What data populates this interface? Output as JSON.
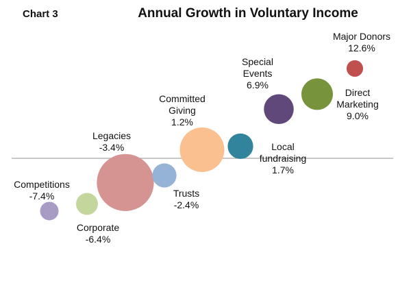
{
  "chart_data": {
    "type": "bubble",
    "chart_number": "Chart 3",
    "title": "Annual Growth in Voluntary Income",
    "value_format": "percent",
    "baseline_y": 0,
    "xlabel": "",
    "ylabel": "",
    "series": [
      {
        "name": "Competitions",
        "label_lines": [
          "Competitions",
          "-7.4%"
        ],
        "y": -7.4,
        "size": 1.0,
        "color": "#A89BC4"
      },
      {
        "name": "Corporate",
        "label_lines": [
          "Corporate",
          "-6.4%"
        ],
        "y": -6.4,
        "size": 1.4,
        "color": "#C3D69B"
      },
      {
        "name": "Legacies",
        "label_lines": [
          "Legacies",
          "-3.4%"
        ],
        "y": -3.4,
        "size": 9.5,
        "color": "#D59392"
      },
      {
        "name": "Trusts",
        "label_lines": [
          "Trusts",
          "-2.4%"
        ],
        "y": -2.4,
        "size": 1.7,
        "color": "#95B3D7"
      },
      {
        "name": "Committed Giving",
        "label_lines": [
          "Committed",
          "Giving",
          "1.2%"
        ],
        "y": 1.2,
        "size": 5.8,
        "color": "#FAC090"
      },
      {
        "name": "Local fundraising",
        "label_lines": [
          "Local",
          "fundraising",
          "1.7%"
        ],
        "y": 1.7,
        "size": 1.9,
        "color": "#31849B"
      },
      {
        "name": "Special Events",
        "label_lines": [
          "Special",
          "Events",
          "6.9%"
        ],
        "y": 6.9,
        "size": 2.6,
        "color": "#60497A"
      },
      {
        "name": "Direct Marketing",
        "label_lines": [
          "Direct",
          "Marketing",
          "9.0%"
        ],
        "y": 9.0,
        "size": 2.9,
        "color": "#77933C"
      },
      {
        "name": "Major Donors",
        "label_lines": [
          "Major Donors",
          "12.6%"
        ],
        "y": 12.6,
        "size": 0.8,
        "color": "#C0504D"
      }
    ]
  }
}
